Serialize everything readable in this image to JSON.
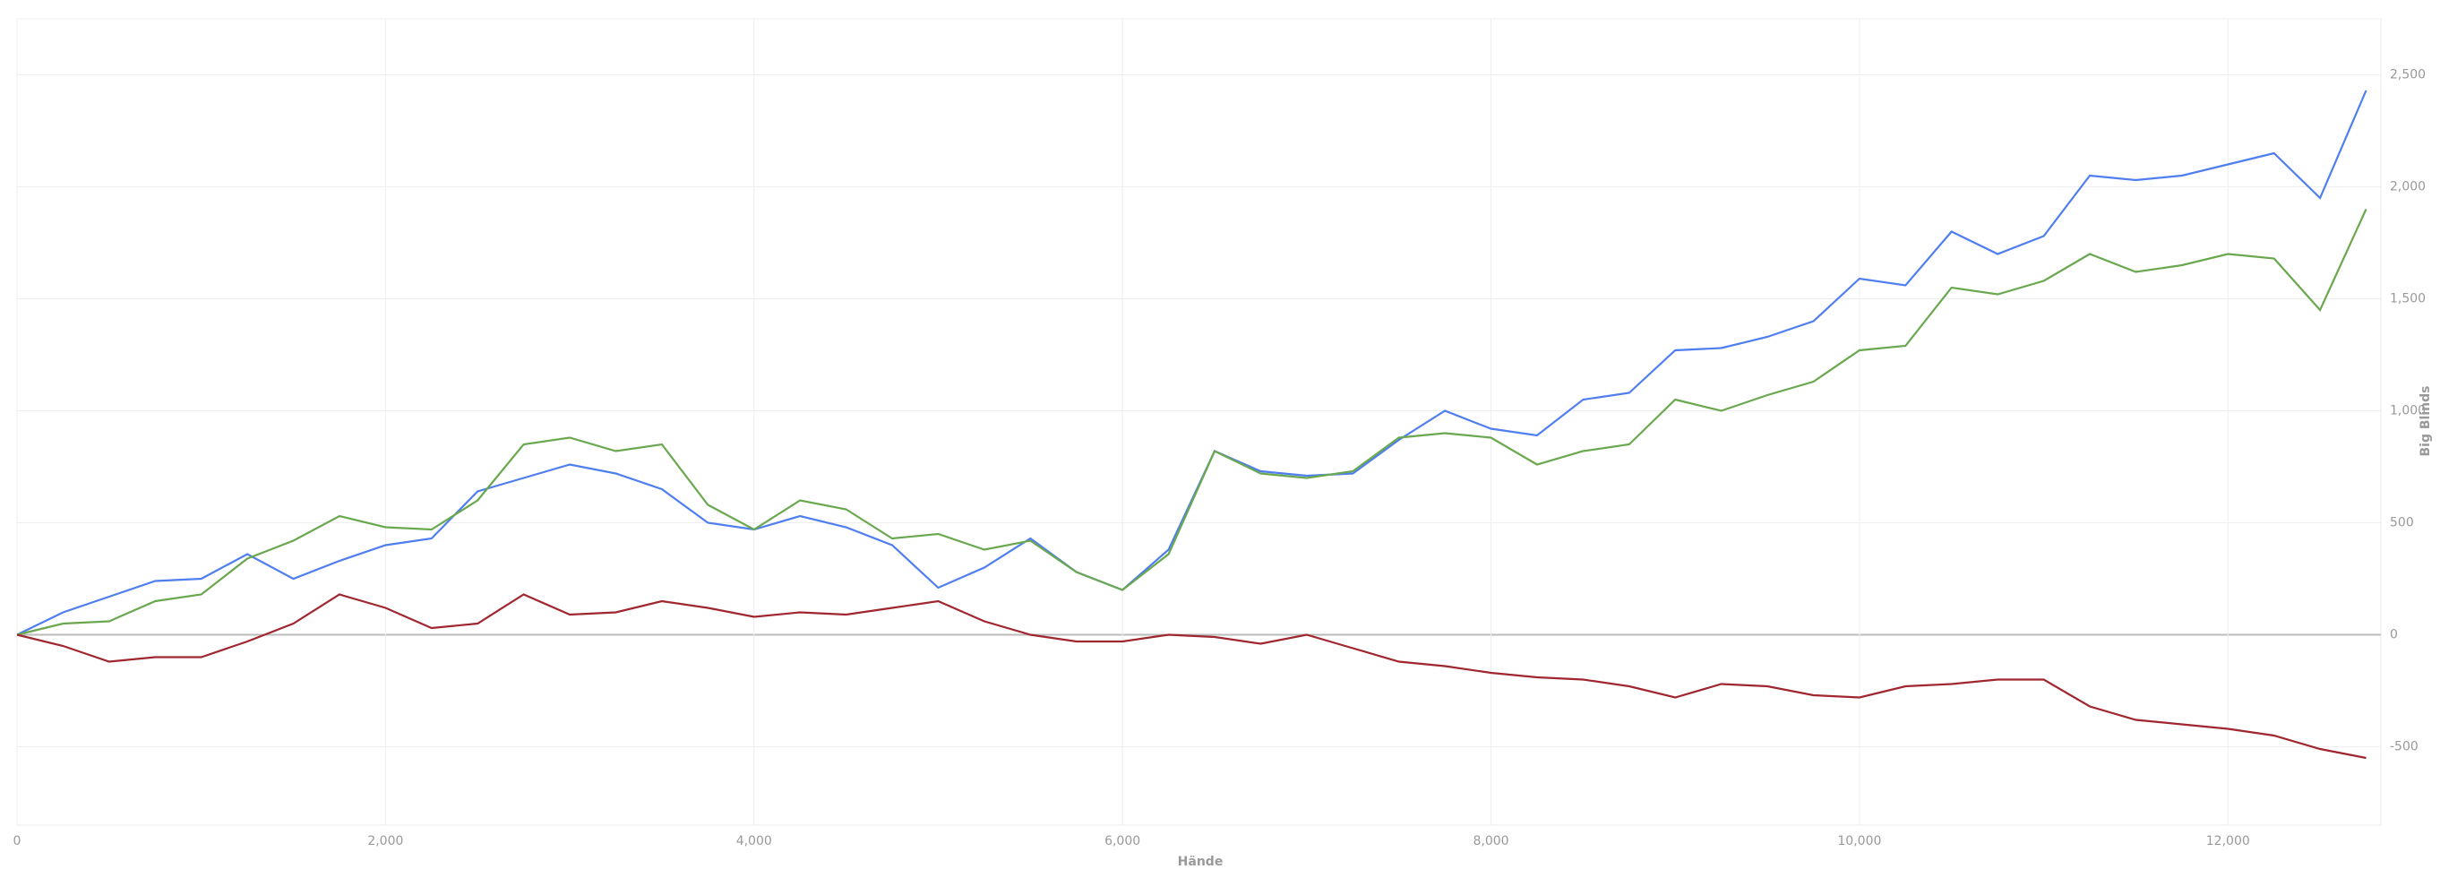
{
  "chart_data": {
    "type": "line",
    "x_label": "Hände",
    "y_label": "Big Blinds",
    "x": [
      0,
      250,
      500,
      750,
      1000,
      1250,
      1500,
      1750,
      2000,
      2250,
      2500,
      2750,
      3000,
      3250,
      3500,
      3750,
      4000,
      4250,
      4500,
      4750,
      5000,
      5250,
      5500,
      5750,
      6000,
      6250,
      6500,
      6750,
      7000,
      7250,
      7500,
      7750,
      8000,
      8250,
      8500,
      8750,
      9000,
      9250,
      9500,
      9750,
      10000,
      10250,
      10500,
      10750,
      11000,
      11250,
      11500,
      11750,
      12000,
      12250,
      12500,
      12750
    ],
    "series": [
      {
        "color": "#4f7ef0",
        "values": [
          0,
          100,
          170,
          240,
          250,
          360,
          250,
          330,
          400,
          430,
          640,
          700,
          760,
          720,
          650,
          500,
          470,
          530,
          480,
          400,
          210,
          300,
          430,
          280,
          200,
          380,
          820,
          730,
          710,
          720,
          870,
          1000,
          920,
          890,
          1050,
          1080,
          1270,
          1280,
          1330,
          1400,
          1590,
          1560,
          1800,
          1700,
          1780,
          2050,
          2030,
          2050,
          2100,
          2150,
          1950,
          2430
        ]
      },
      {
        "color": "#6aa84f",
        "values": [
          0,
          50,
          60,
          150,
          180,
          340,
          420,
          530,
          480,
          470,
          600,
          850,
          880,
          820,
          850,
          580,
          470,
          600,
          560,
          430,
          450,
          380,
          420,
          280,
          200,
          360,
          820,
          720,
          700,
          730,
          880,
          900,
          880,
          760,
          820,
          850,
          1050,
          1000,
          1070,
          1130,
          1270,
          1290,
          1550,
          1520,
          1580,
          1700,
          1620,
          1650,
          1700,
          1680,
          1450,
          1900
        ]
      },
      {
        "color": "#a0262f",
        "values": [
          0,
          -50,
          -120,
          -100,
          -100,
          -30,
          50,
          180,
          120,
          30,
          50,
          180,
          90,
          100,
          150,
          120,
          80,
          100,
          90,
          120,
          150,
          60,
          0,
          -30,
          -30,
          0,
          -10,
          -40,
          0,
          -60,
          -120,
          -140,
          -170,
          -190,
          -200,
          -230,
          -280,
          -220,
          -230,
          -270,
          -280,
          -230,
          -220,
          -200,
          -200,
          -320,
          -380,
          -400,
          -420,
          -450,
          -510,
          -550
        ]
      }
    ],
    "xlim": [
      0,
      12830
    ],
    "ylim": [
      -850,
      2750
    ],
    "xticks": [
      0,
      {
        "value": 2000,
        "label": "2,000"
      },
      {
        "value": 4000,
        "label": "4,000"
      },
      {
        "value": 6000,
        "label": "6,000"
      },
      {
        "value": 8000,
        "label": "8,000"
      },
      {
        "value": 10000,
        "label": "10,000"
      },
      {
        "value": 12000,
        "label": "12,000"
      }
    ],
    "yticks": [
      -500,
      0,
      500,
      {
        "value": 1000,
        "label": "1,000"
      },
      {
        "value": 1500,
        "label": "1,500"
      },
      {
        "value": 2000,
        "label": "2,000"
      },
      {
        "value": 2500,
        "label": "2,500"
      }
    ],
    "grid": true
  }
}
